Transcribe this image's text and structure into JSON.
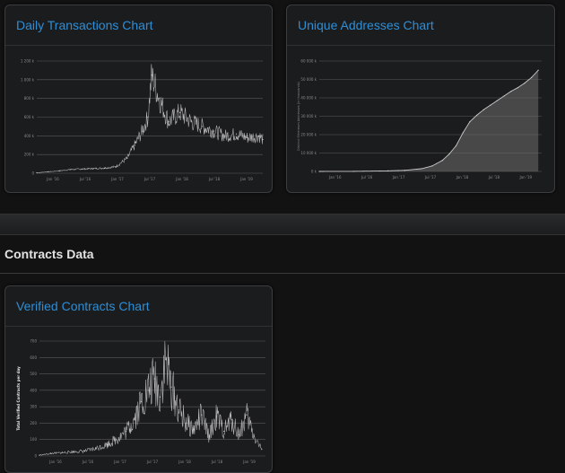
{
  "section": {
    "title": "Contracts Data"
  },
  "panels": {
    "daily": {
      "title": "Daily Transactions Chart"
    },
    "unique": {
      "title": "Unique Addresses Chart"
    },
    "verified": {
      "title": "Verified Contracts Chart"
    }
  },
  "chart_data": [
    {
      "type": "line",
      "title": "Daily Transactions Chart",
      "ylim": [
        0,
        1200000
      ],
      "y_ticks": [
        "0",
        "200 k",
        "400 k",
        "600 k",
        "800 k",
        "1 000 k",
        "1 200 k"
      ],
      "x_ticks": [
        "Jan '16",
        "Jul '16",
        "Jan '17",
        "Jul '17",
        "Jan '18",
        "Jul '18",
        "Jan '19"
      ],
      "x": [
        0,
        0.3,
        0.6,
        0.9,
        1.2,
        1.5,
        1.8,
        2.1,
        2.4,
        2.6,
        2.8,
        2.95,
        3.05,
        3.25,
        3.5,
        3.8,
        4.1,
        4.4,
        4.7,
        5.0,
        5.3,
        5.6,
        5.9,
        6.0
      ],
      "values": [
        5000,
        15000,
        25000,
        40000,
        45000,
        50000,
        55000,
        70000,
        160000,
        300000,
        450000,
        600000,
        1050000,
        800000,
        550000,
        650000,
        550000,
        500000,
        450000,
        400000,
        420000,
        380000,
        400000,
        360000
      ]
    },
    {
      "type": "area",
      "title": "Unique Addresses Chart",
      "ylabel": "Distinct Ethereum Addresses (in thousands)",
      "ylim": [
        0,
        60000
      ],
      "y_ticks": [
        "0 k",
        "10 000 k",
        "20 000 k",
        "30 000 k",
        "40 000 k",
        "50 000 k",
        "60 000 k"
      ],
      "x_ticks": [
        "Jan '16",
        "Jul '16",
        "Jan '17",
        "Jul '17",
        "Jan '18",
        "Jul '18",
        "Jan '19"
      ],
      "x": [
        0,
        1,
        2,
        2.5,
        3,
        3.3,
        3.6,
        3.8,
        4,
        4.2,
        4.4,
        4.6,
        4.8,
        5,
        5.2,
        5.4,
        5.6,
        5.8,
        6,
        6.2,
        6.4
      ],
      "values": [
        0,
        50,
        300,
        600,
        1500,
        3000,
        6000,
        9500,
        14000,
        21000,
        27000,
        30500,
        33500,
        36000,
        38500,
        41000,
        43500,
        45500,
        48000,
        51000,
        55000
      ]
    },
    {
      "type": "line",
      "title": "Verified Contracts Chart",
      "ylabel": "Total Verified Contracts per day",
      "ylim": [
        0,
        700
      ],
      "y_ticks": [
        "0",
        "100",
        "200",
        "300",
        "400",
        "500",
        "600",
        "700"
      ],
      "x_ticks": [
        "Jan '16",
        "Jul '16",
        "Jan '17",
        "Jul '17",
        "Jan '18",
        "Jul '18",
        "Jan '19"
      ],
      "x": [
        0,
        0.3,
        0.6,
        0.9,
        1.2,
        1.5,
        1.8,
        2.1,
        2.3,
        2.5,
        2.7,
        2.9,
        3.05,
        3.2,
        3.35,
        3.5,
        3.7,
        3.9,
        4.1,
        4.3,
        4.5,
        4.7,
        4.9,
        5.1,
        5.3,
        5.5,
        5.7,
        5.9
      ],
      "values": [
        5,
        15,
        20,
        25,
        30,
        45,
        70,
        110,
        150,
        220,
        330,
        400,
        470,
        360,
        590,
        420,
        280,
        200,
        160,
        250,
        120,
        240,
        150,
        220,
        130,
        250,
        120,
        40
      ]
    }
  ]
}
